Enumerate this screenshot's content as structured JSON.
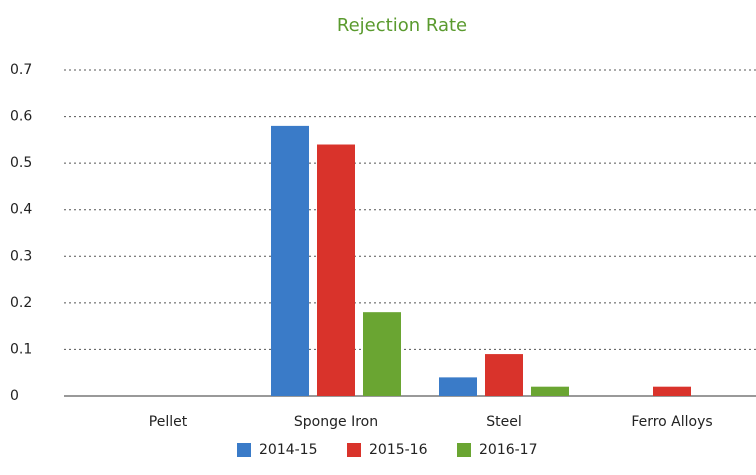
{
  "chart_data": {
    "type": "bar",
    "title": "Rejection Rate",
    "categories": [
      "Pellet",
      "Sponge Iron",
      "Steel",
      "Ferro Alloys"
    ],
    "series": [
      {
        "name": "2014-15",
        "color": "#3a7bc8",
        "values": [
          0,
          0.58,
          0.04,
          0
        ]
      },
      {
        "name": "2015-16",
        "color": "#d9332b",
        "values": [
          0,
          0.54,
          0.09,
          0.02
        ]
      },
      {
        "name": "2016-17",
        "color": "#6aa532",
        "values": [
          0,
          0.18,
          0.02,
          0
        ]
      }
    ],
    "ylim": [
      0,
      0.7
    ],
    "yticks": [
      0,
      0.1,
      0.2,
      0.3,
      0.4,
      0.5,
      0.6,
      0.7
    ],
    "grid": true,
    "legend": "bottom"
  }
}
